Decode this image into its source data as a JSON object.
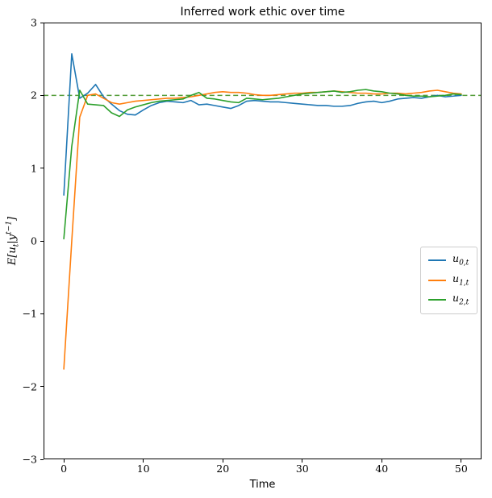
{
  "figure": {
    "title": "Inferred work ethic over time",
    "background": "#ffffff"
  },
  "axes": {
    "xlabel": "Time",
    "ylabel_parts": {
      "pre": "E[u",
      "sub": "t",
      "mid": "|y",
      "sup": "t−1",
      "post": "]"
    },
    "xlim": [
      -2.55,
      52.55
    ],
    "ylim": [
      -3,
      3
    ],
    "xticks": [
      {
        "value": 0,
        "label": "0"
      },
      {
        "value": 10,
        "label": "10"
      },
      {
        "value": 20,
        "label": "20"
      },
      {
        "value": 30,
        "label": "30"
      },
      {
        "value": 40,
        "label": "40"
      },
      {
        "value": 50,
        "label": "50"
      }
    ],
    "yticks": [
      {
        "value": 3,
        "label": "3"
      },
      {
        "value": 2,
        "label": "2"
      },
      {
        "value": 1,
        "label": "1"
      },
      {
        "value": 0,
        "label": "0"
      },
      {
        "value": -1,
        "label": "−1"
      },
      {
        "value": -2,
        "label": "−2"
      },
      {
        "value": -3,
        "label": "−3"
      }
    ],
    "spine_color": "#000000"
  },
  "chart_data": {
    "type": "line",
    "title": "Inferred work ethic over time",
    "xlabel": "Time",
    "ylabel": "E[u_t | y^{t-1}]",
    "xlim": [
      -2.55,
      52.55
    ],
    "ylim": [
      -3,
      3
    ],
    "grid": false,
    "legend_position": "center right",
    "x_start": 0,
    "x_step": 1,
    "reference_line": {
      "y": 2,
      "style": "dashed",
      "color": "#559e3b"
    },
    "series": [
      {
        "name": "u_{0,t}",
        "label_base": "u",
        "label_sub": "0,t",
        "color": "#1f77b4",
        "values": [
          0.63,
          2.57,
          1.96,
          2.03,
          2.15,
          1.98,
          1.88,
          1.79,
          1.74,
          1.73,
          1.8,
          1.86,
          1.9,
          1.92,
          1.91,
          1.9,
          1.93,
          1.87,
          1.88,
          1.86,
          1.84,
          1.82,
          1.86,
          1.92,
          1.93,
          1.92,
          1.91,
          1.91,
          1.9,
          1.89,
          1.88,
          1.87,
          1.86,
          1.86,
          1.85,
          1.85,
          1.86,
          1.89,
          1.91,
          1.92,
          1.9,
          1.92,
          1.95,
          1.96,
          1.97,
          1.96,
          1.98,
          2.0,
          1.98,
          1.99,
          2.0
        ]
      },
      {
        "name": "u_{1,t}",
        "label_base": "u",
        "label_sub": "1,t",
        "color": "#ff7f0e",
        "values": [
          -1.76,
          0.0,
          1.7,
          2.0,
          2.02,
          1.96,
          1.9,
          1.88,
          1.9,
          1.92,
          1.93,
          1.94,
          1.95,
          1.96,
          1.96,
          1.97,
          1.98,
          2.0,
          2.02,
          2.04,
          2.05,
          2.04,
          2.04,
          2.03,
          2.01,
          2.0,
          2.0,
          2.01,
          2.02,
          2.03,
          2.03,
          2.04,
          2.04,
          2.05,
          2.06,
          2.05,
          2.04,
          2.03,
          2.03,
          2.02,
          2.02,
          2.03,
          2.03,
          2.02,
          2.03,
          2.04,
          2.06,
          2.07,
          2.05,
          2.03,
          2.02
        ]
      },
      {
        "name": "u_{2,t}",
        "label_base": "u",
        "label_sub": "2,t",
        "color": "#2ca02c",
        "values": [
          0.03,
          1.3,
          2.07,
          1.88,
          1.87,
          1.86,
          1.76,
          1.71,
          1.8,
          1.84,
          1.87,
          1.9,
          1.92,
          1.93,
          1.94,
          1.95,
          2.0,
          2.04,
          1.96,
          1.95,
          1.93,
          1.91,
          1.9,
          1.96,
          1.95,
          1.94,
          1.95,
          1.96,
          1.98,
          2.0,
          2.02,
          2.03,
          2.04,
          2.05,
          2.06,
          2.04,
          2.05,
          2.07,
          2.08,
          2.06,
          2.05,
          2.03,
          2.02,
          2.0,
          1.99,
          1.99,
          1.98,
          1.99,
          2.0,
          2.02,
          2.01
        ]
      }
    ]
  }
}
